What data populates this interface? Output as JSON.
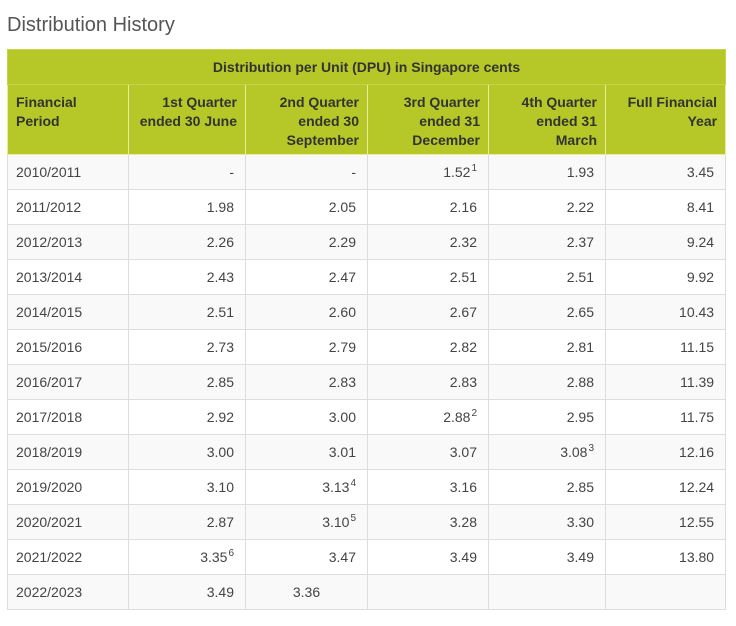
{
  "page": {
    "title": "Distribution History"
  },
  "table": {
    "banner": "Distribution per Unit (DPU) in Singapore cents",
    "headers": [
      "Financial Period",
      "1st Quarter ended 30 June",
      "2nd Quarter ended 30 September",
      "3rd Quarter ended 31 December",
      "4th Quarter ended 31 March",
      "Full Financial Year"
    ],
    "rows": [
      {
        "period": "2010/2011",
        "q1": "-",
        "q1_sup": "",
        "q2": "-",
        "q2_sup": "",
        "q3": "1.52",
        "q3_sup": "1",
        "q4": "1.93",
        "q4_sup": "",
        "fy": "3.45"
      },
      {
        "period": "2011/2012",
        "q1": "1.98",
        "q1_sup": "",
        "q2": "2.05",
        "q2_sup": "",
        "q3": "2.16",
        "q3_sup": "",
        "q4": "2.22",
        "q4_sup": "",
        "fy": "8.41"
      },
      {
        "period": "2012/2013",
        "q1": "2.26",
        "q1_sup": "",
        "q2": "2.29",
        "q2_sup": "",
        "q3": "2.32",
        "q3_sup": "",
        "q4": "2.37",
        "q4_sup": "",
        "fy": "9.24"
      },
      {
        "period": "2013/2014",
        "q1": "2.43",
        "q1_sup": "",
        "q2": "2.47",
        "q2_sup": "",
        "q3": "2.51",
        "q3_sup": "",
        "q4": "2.51",
        "q4_sup": "",
        "fy": "9.92"
      },
      {
        "period": "2014/2015",
        "q1": "2.51",
        "q1_sup": "",
        "q2": "2.60",
        "q2_sup": "",
        "q3": "2.67",
        "q3_sup": "",
        "q4": "2.65",
        "q4_sup": "",
        "fy": "10.43"
      },
      {
        "period": "2015/2016",
        "q1": "2.73",
        "q1_sup": "",
        "q2": "2.79",
        "q2_sup": "",
        "q3": "2.82",
        "q3_sup": "",
        "q4": "2.81",
        "q4_sup": "",
        "fy": "11.15"
      },
      {
        "period": "2016/2017",
        "q1": "2.85",
        "q1_sup": "",
        "q2": "2.83",
        "q2_sup": "",
        "q3": "2.83",
        "q3_sup": "",
        "q4": "2.88",
        "q4_sup": "",
        "fy": "11.39"
      },
      {
        "period": "2017/2018",
        "q1": "2.92",
        "q1_sup": "",
        "q2": "3.00",
        "q2_sup": "",
        "q3": "2.88",
        "q3_sup": "2",
        "q4": "2.95",
        "q4_sup": "",
        "fy": "11.75"
      },
      {
        "period": "2018/2019",
        "q1": "3.00",
        "q1_sup": "",
        "q2": "3.01",
        "q2_sup": "",
        "q3": "3.07",
        "q3_sup": "",
        "q4": "3.08",
        "q4_sup": "3",
        "fy": "12.16"
      },
      {
        "period": "2019/2020",
        "q1": "3.10",
        "q1_sup": "",
        "q2": "3.13",
        "q2_sup": "4",
        "q3": "3.16",
        "q3_sup": "",
        "q4": "2.85",
        "q4_sup": "",
        "fy": "12.24"
      },
      {
        "period": "2020/2021",
        "q1": "2.87",
        "q1_sup": "",
        "q2": "3.10",
        "q2_sup": "5",
        "q3": "3.28",
        "q3_sup": "",
        "q4": "3.30",
        "q4_sup": "",
        "fy": "12.55"
      },
      {
        "period": "2021/2022",
        "q1": "3.35",
        "q1_sup": "6",
        "q2": "3.47",
        "q2_sup": "",
        "q3": "3.49",
        "q3_sup": "",
        "q4": "3.49",
        "q4_sup": "",
        "fy": "13.80"
      },
      {
        "period": "2022/2023",
        "q1": "3.49",
        "q1_sup": "",
        "q2": "3.36",
        "q2_sup": "",
        "q3": "",
        "q3_sup": "",
        "q4": "",
        "q4_sup": "",
        "fy": ""
      }
    ]
  },
  "colors": {
    "header_bg": "#b5c827",
    "header_text": "#333333",
    "body_text": "#444444",
    "border": "#dddddd"
  }
}
